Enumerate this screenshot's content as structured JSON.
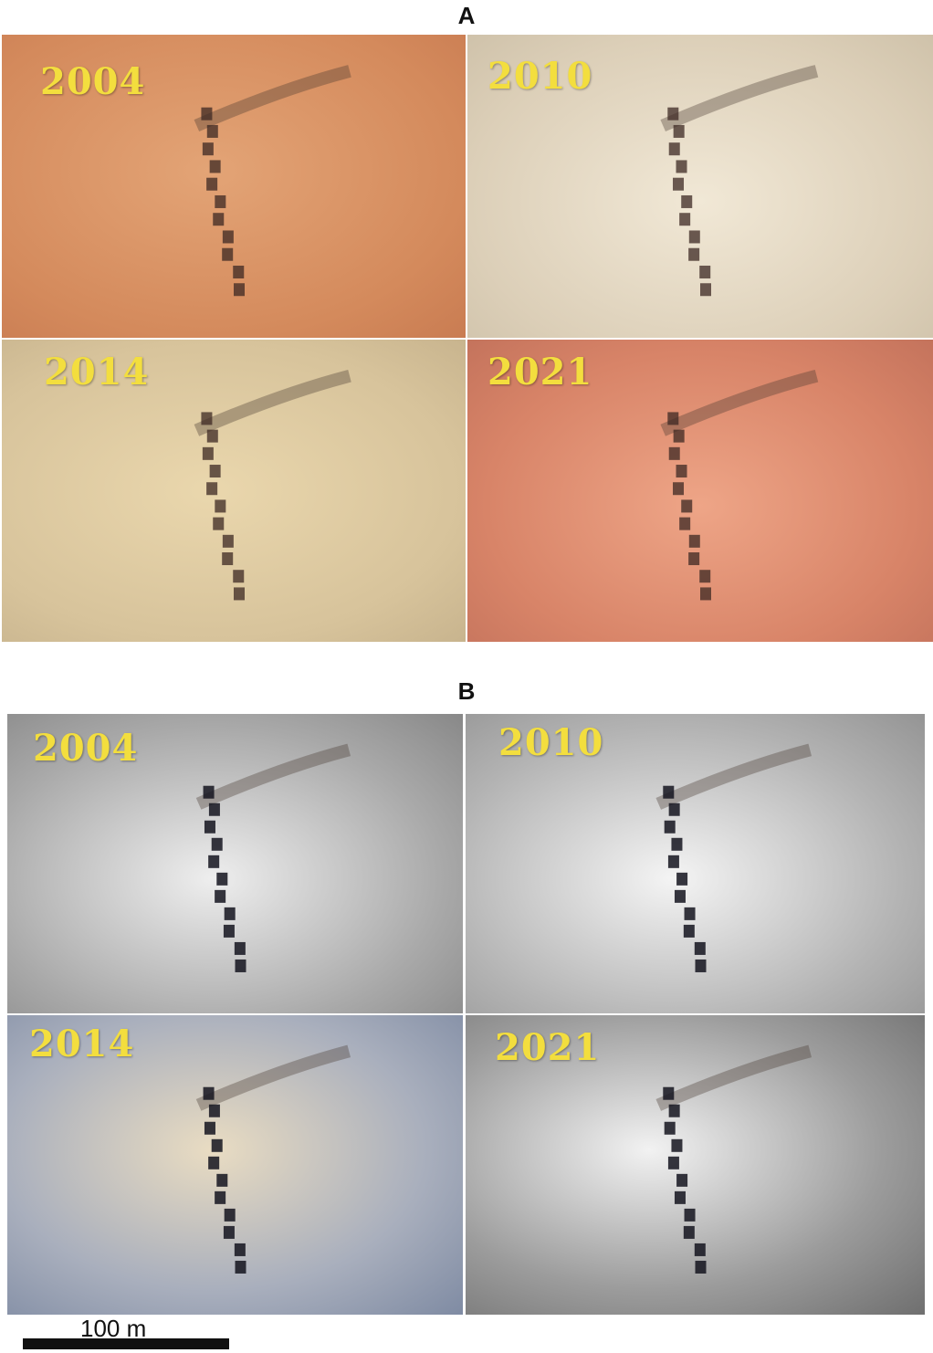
{
  "panel_a": {
    "label": "A",
    "images": [
      {
        "year": "2004"
      },
      {
        "year": "2010"
      },
      {
        "year": "2014"
      },
      {
        "year": "2021"
      }
    ]
  },
  "panel_b": {
    "label": "B",
    "images": [
      {
        "year": "2004"
      },
      {
        "year": "2010"
      },
      {
        "year": "2014"
      },
      {
        "year": "2021"
      }
    ]
  },
  "scale_bar": {
    "label": "100 m"
  }
}
